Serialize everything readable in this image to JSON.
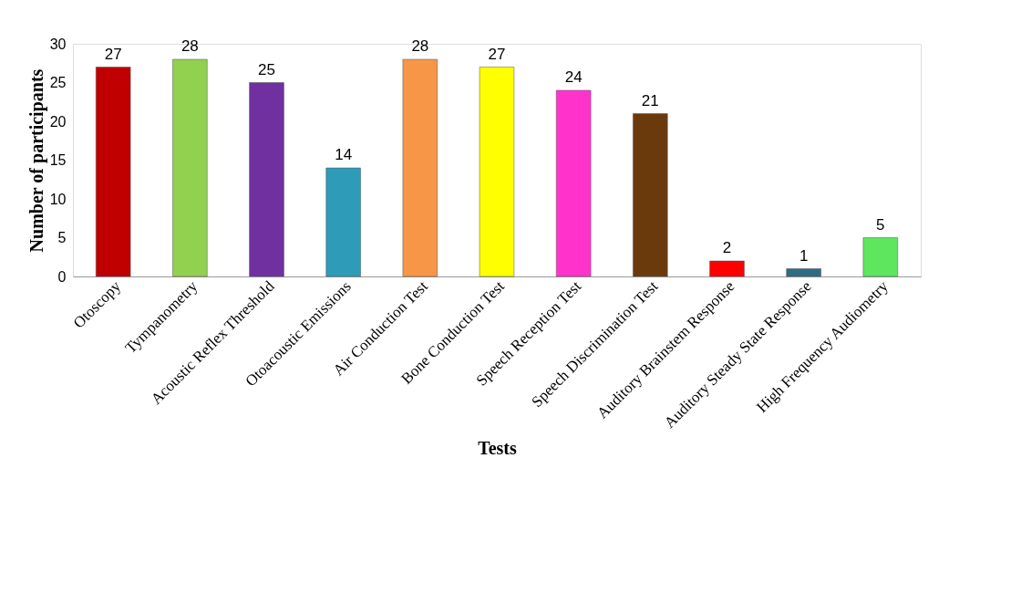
{
  "chart_data": {
    "type": "bar",
    "xlabel": "Tests",
    "ylabel": "Number of participants",
    "categories": [
      "Otoscopy",
      "Tympanometry",
      "Acoustic Reflex Threshold",
      "Otoacoustic Emissions",
      "Air Conduction Test",
      "Bone Conduction Test",
      "Speech Reception Test",
      "Speech Discrimination Test",
      "Auditory Brainstem Response",
      "Auditory Steady State Response",
      "High Frequency Audiometry"
    ],
    "values": [
      27,
      28,
      25,
      14,
      28,
      27,
      24,
      21,
      2,
      1,
      5
    ],
    "colors": [
      "#c00000",
      "#92d050",
      "#7030a0",
      "#2e9bb8",
      "#f79646",
      "#ffff00",
      "#ff33cc",
      "#6b3a0c",
      "#ff0000",
      "#2f6b85",
      "#5ee65e"
    ],
    "ylim": [
      0,
      30
    ],
    "yticks": [
      0,
      5,
      10,
      15,
      20,
      25,
      30
    ],
    "grid": false,
    "legend": false,
    "data_labels": true
  }
}
